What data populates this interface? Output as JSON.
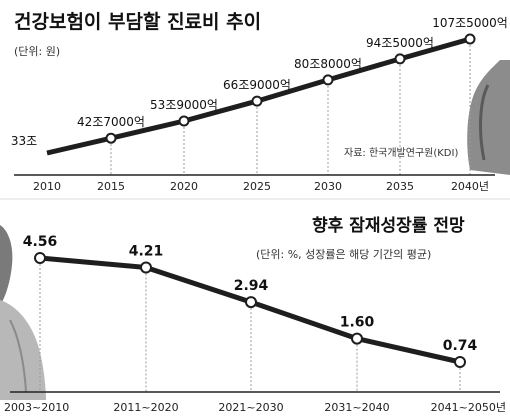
{
  "chart_data": [
    {
      "type": "line",
      "title": "건강보험이 부담할 진료비 추이",
      "unit_note": "(단위: 원)",
      "source": "자료: 한국개발연구원(KDI)",
      "categories": [
        "2010",
        "2015",
        "2020",
        "2025",
        "2030",
        "2035",
        "2040년"
      ],
      "value_labels": [
        "33조",
        "42조7000억",
        "53조9000억",
        "66조9000억",
        "80조8000억",
        "94조5000억",
        "107조5000억"
      ],
      "values": [
        33,
        42.7,
        53.9,
        66.9,
        80.8,
        94.5,
        107.5
      ],
      "value_unit": "조 원",
      "ylim": [
        30,
        110
      ],
      "grid": "vertical dashed guides per point"
    },
    {
      "type": "line",
      "title": "향후 잠재성장률 전망",
      "unit_note": "(단위: %, 성장률은 해당 기간의 평균)",
      "categories": [
        "2003~2010",
        "2011~2020",
        "2021~2030",
        "2031~2040",
        "2041~2050년"
      ],
      "value_labels": [
        "4.56",
        "4.21",
        "2.94",
        "1.60",
        "0.74"
      ],
      "values": [
        4.56,
        4.21,
        2.94,
        1.6,
        0.74
      ],
      "ylim": [
        0,
        5
      ],
      "grid": "vertical dashed guides per point"
    }
  ],
  "colors": {
    "line": "#1e1e1e",
    "marker_fill": "#ffffff",
    "guide": "#9a9a9a",
    "axis": "#222222"
  }
}
